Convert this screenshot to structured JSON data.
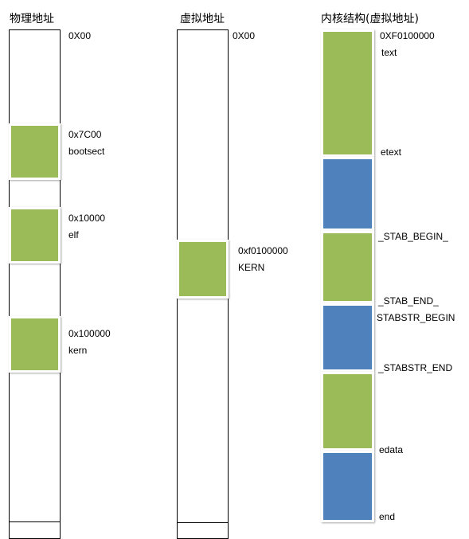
{
  "colors": {
    "green": "#9bbb59",
    "blue": "#4f81bd"
  },
  "physical": {
    "title": "物理地址",
    "top_addr": "0X00",
    "blocks": [
      {
        "addr": "0x7C00",
        "name": "bootsect"
      },
      {
        "addr": "0x10000",
        "name": "elf"
      },
      {
        "addr": "0x100000",
        "name": "kern"
      }
    ]
  },
  "virtual": {
    "title": "虚拟地址",
    "top_addr": "0X00",
    "block": {
      "addr": "0xf0100000",
      "name": "KERN"
    }
  },
  "kernel": {
    "title": "内核结构(虚拟地址)",
    "labels": {
      "start_addr": "0XF0100000",
      "text": "text",
      "etext": "etext",
      "stab_begin": "_STAB_BEGIN_",
      "stab_end": "_STAB_END_",
      "stabstr_begin": "STABSTR_BEGIN",
      "stabstr_end": "_STABSTR_END",
      "edata": "edata",
      "end": "end"
    }
  }
}
